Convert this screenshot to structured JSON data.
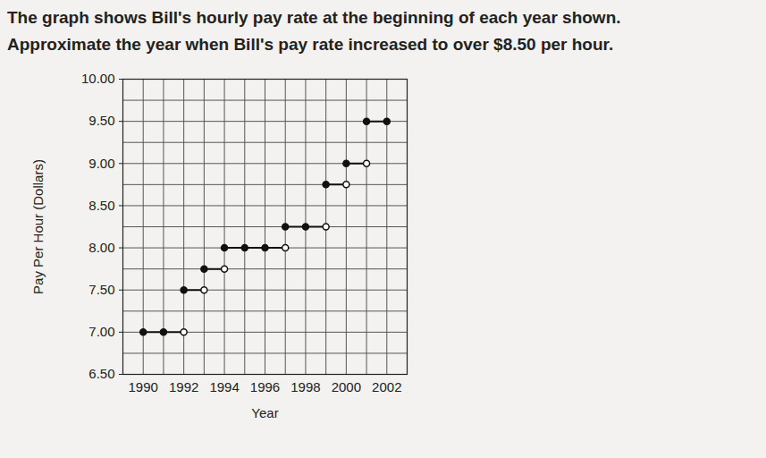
{
  "chart_data": {
    "type": "step",
    "title": "The graph shows Bill's hourly pay rate at the beginning of each year shown.",
    "subtitle": "Approximate the year when Bill's pay rate increased to over $8.50 per hour.",
    "x_label": "Year",
    "y_label": "Pay Per Hour (Dollars)",
    "xlim": [
      1989,
      2003
    ],
    "xticks": [
      1990,
      1992,
      1994,
      1996,
      1998,
      2000,
      2002
    ],
    "ylim": [
      6.5,
      10
    ],
    "yticks": [
      {
        "value": 6.5,
        "label": "6.50"
      },
      {
        "value": 7,
        "label": "7.00"
      },
      {
        "value": 7.5,
        "label": "7.50"
      },
      {
        "value": 8,
        "label": "8.00"
      },
      {
        "value": 8.5,
        "label": "8.50"
      },
      {
        "value": 9,
        "label": "9.00"
      },
      {
        "value": 9.5,
        "label": "9.50"
      },
      {
        "value": 10,
        "label": "10.00"
      }
    ],
    "grid": true,
    "color": "#111111",
    "segments": [
      {
        "x": [
          1990,
          1991,
          1992
        ],
        "values": [
          7,
          7,
          7
        ],
        "marker": [
          "closed",
          "closed",
          "open"
        ]
      },
      {
        "x": [
          1992,
          1993
        ],
        "values": [
          7.5,
          7.5
        ],
        "marker": [
          "closed",
          "open"
        ]
      },
      {
        "x": [
          1993,
          1994
        ],
        "values": [
          7.75,
          7.75
        ],
        "marker": [
          "closed",
          "open"
        ]
      },
      {
        "x": [
          1994,
          1995,
          1996,
          1997
        ],
        "values": [
          8,
          8,
          8,
          8
        ],
        "marker": [
          "closed",
          "closed",
          "closed",
          "open"
        ]
      },
      {
        "x": [
          1997,
          1998,
          1999
        ],
        "values": [
          8.25,
          8.25,
          8.25
        ],
        "marker": [
          "closed",
          "closed",
          "open"
        ]
      },
      {
        "x": [
          1999,
          2000
        ],
        "values": [
          8.75,
          8.75
        ],
        "marker": [
          "closed",
          "open"
        ]
      },
      {
        "x": [
          2000,
          2001
        ],
        "values": [
          9,
          9
        ],
        "marker": [
          "closed",
          "open"
        ]
      },
      {
        "x": [
          2001,
          2002
        ],
        "values": [
          9.5,
          9.5
        ],
        "marker": [
          "closed",
          "closed"
        ]
      }
    ]
  }
}
